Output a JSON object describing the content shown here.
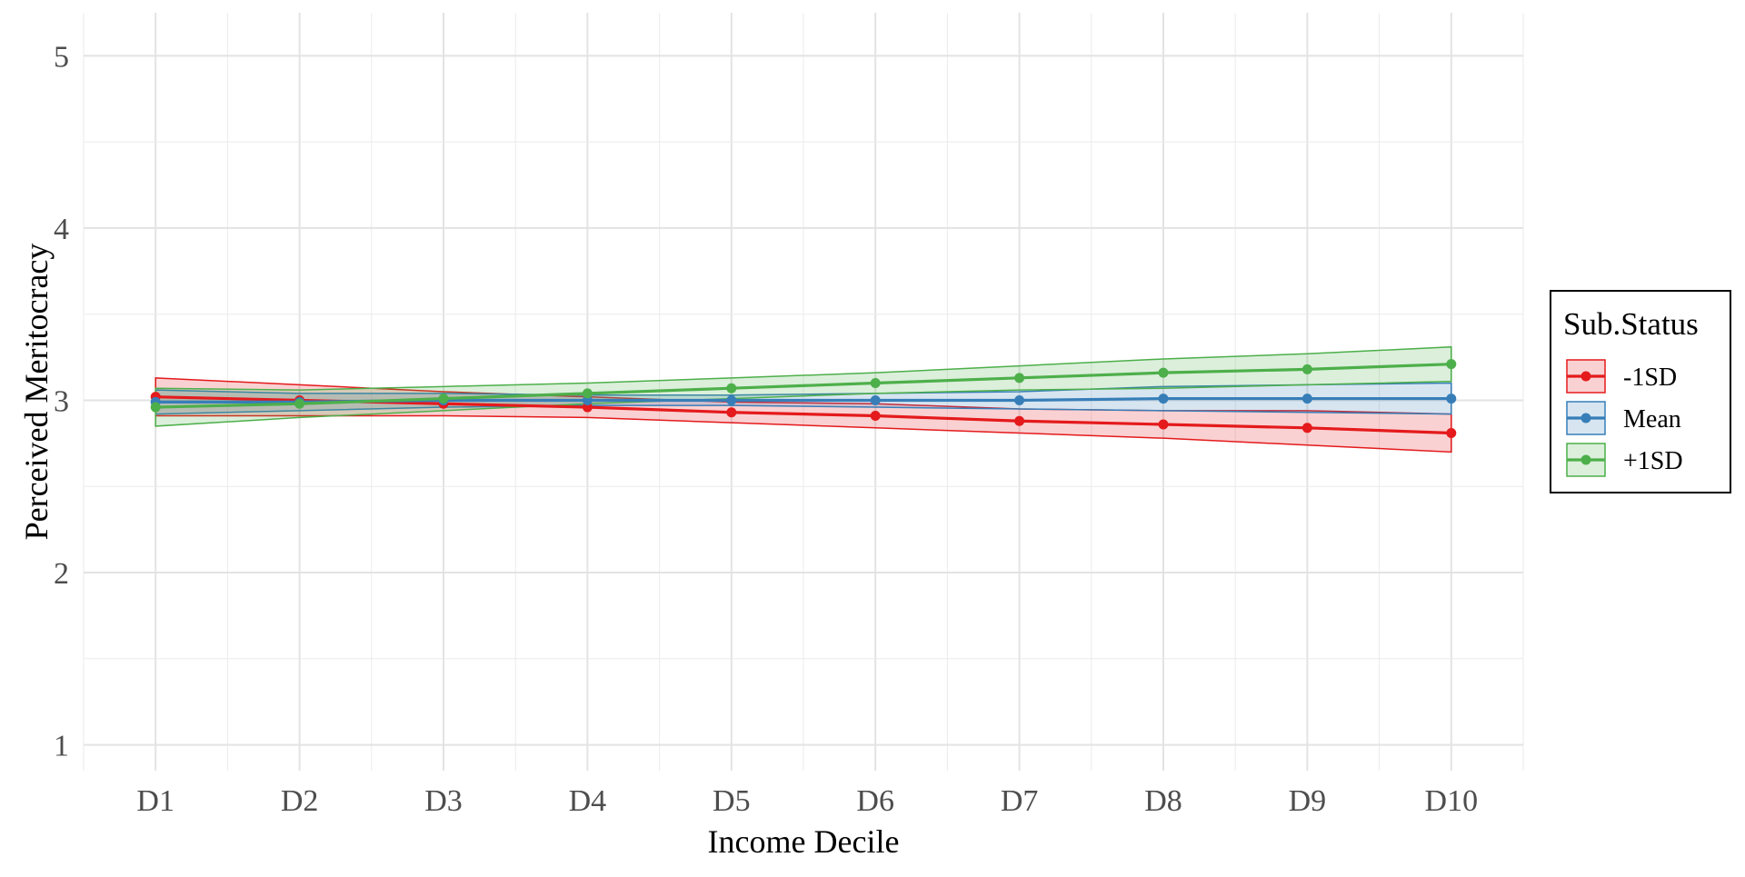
{
  "chart_data": {
    "type": "line",
    "title": "",
    "xlabel": "Income Decile",
    "ylabel": "Perceived Meritocracy",
    "categories": [
      "D1",
      "D2",
      "D3",
      "D4",
      "D5",
      "D6",
      "D7",
      "D8",
      "D9",
      "D10"
    ],
    "ylim": [
      0.85,
      5.25
    ],
    "yticks": [
      1,
      2,
      3,
      4,
      5
    ],
    "grid": true,
    "legend": {
      "title": "Sub.Status",
      "position": "right"
    },
    "series": [
      {
        "name": "-1SD",
        "color": "#E41A1C",
        "values": [
          3.02,
          3.0,
          2.98,
          2.96,
          2.93,
          2.91,
          2.88,
          2.86,
          2.84,
          2.81
        ],
        "lower": [
          2.91,
          2.91,
          2.91,
          2.9,
          2.87,
          2.84,
          2.81,
          2.78,
          2.74,
          2.7
        ],
        "upper": [
          3.13,
          3.09,
          3.05,
          3.02,
          2.99,
          2.98,
          2.95,
          2.94,
          2.94,
          2.92
        ]
      },
      {
        "name": "Mean",
        "color": "#377EB8",
        "values": [
          2.99,
          2.99,
          3.0,
          3.0,
          3.0,
          3.0,
          3.0,
          3.01,
          3.01,
          3.01
        ],
        "lower": [
          2.92,
          2.94,
          2.96,
          2.97,
          2.97,
          2.96,
          2.95,
          2.94,
          2.93,
          2.92
        ],
        "upper": [
          3.06,
          3.04,
          3.04,
          3.03,
          3.03,
          3.04,
          3.05,
          3.08,
          3.09,
          3.1
        ]
      },
      {
        "name": "+1SD",
        "color": "#4DAF4A",
        "values": [
          2.96,
          2.98,
          3.01,
          3.04,
          3.07,
          3.1,
          3.13,
          3.16,
          3.18,
          3.21
        ],
        "lower": [
          2.85,
          2.9,
          2.94,
          2.98,
          3.01,
          3.04,
          3.06,
          3.07,
          3.09,
          3.11
        ],
        "upper": [
          3.07,
          3.06,
          3.08,
          3.1,
          3.13,
          3.16,
          3.2,
          3.24,
          3.27,
          3.31
        ]
      }
    ]
  }
}
